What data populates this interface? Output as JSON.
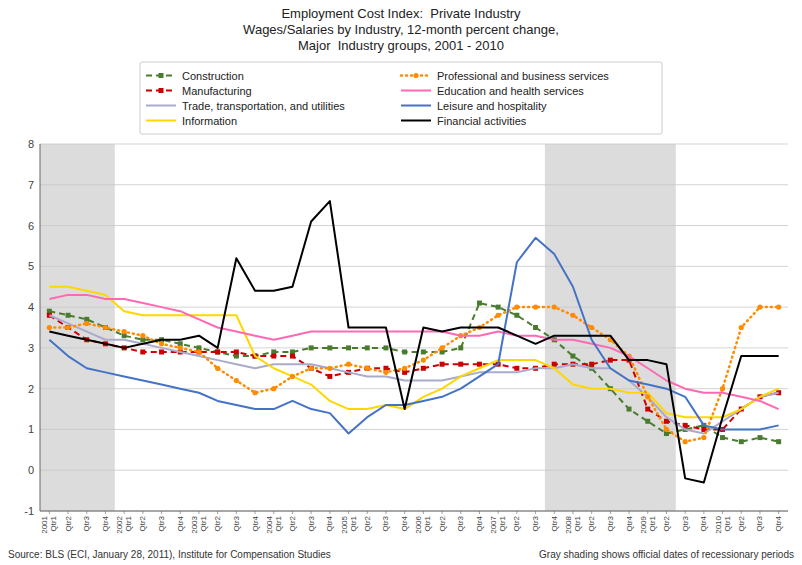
{
  "chart_data": {
    "type": "line",
    "title": "Employment Cost Index:  Private Industry\nWages/Salaries by Industry, 12-month percent change,\nMajor  Industry groups, 2001 - 2010",
    "annotations": [
      "Source: BLS (ECI, January 28, 2011), Institute for Compensation Studies",
      "Gray shading shows official dates of recessionary periods"
    ],
    "recession_bands": [
      [
        0,
        3
      ],
      [
        27,
        33
      ]
    ],
    "categories": [
      "2001\nQtr1",
      "Qtr2",
      "Qtr3",
      "Qtr4",
      "2002\nQtr1",
      "Qtr2",
      "Qtr3",
      "Qtr4",
      "2003\nQtr1",
      "Qtr2",
      "Qtr3",
      "Qtr4",
      "2004\nQtr1",
      "Qtr2",
      "Qtr3",
      "Qtr4",
      "2005\nQtr1",
      "Qtr2",
      "Qtr3",
      "Qtr4",
      "2006\nQtr1",
      "Qtr2",
      "Qtr3",
      "Qtr4",
      "2007\nQtr1",
      "Qtr2",
      "Qtr3",
      "Qtr4",
      "2008\nQtr1",
      "Qtr2",
      "Qtr3",
      "Qtr4",
      "2009\nQtr1",
      "Qtr2",
      "Qtr3",
      "Qtr4",
      "2010\nQtr1",
      "Qtr2",
      "Qtr3",
      "Qtr4"
    ],
    "series": [
      {
        "name": "Construction",
        "color": "#4A7C2F",
        "line_style": "dashed",
        "marker": "square",
        "values": [
          3.9,
          3.8,
          3.7,
          3.5,
          3.3,
          3.2,
          3.2,
          3.1,
          3.0,
          2.9,
          2.8,
          2.8,
          2.9,
          2.9,
          3.0,
          3.0,
          3.0,
          3.0,
          3.0,
          2.9,
          2.9,
          2.9,
          3.0,
          4.1,
          4.0,
          3.8,
          3.5,
          3.2,
          2.8,
          2.5,
          2.0,
          1.5,
          1.2,
          0.9,
          1.0,
          1.1,
          0.8,
          0.7,
          0.8,
          0.7
        ]
      },
      {
        "name": "Manufacturing",
        "color": "#CC0000",
        "line_style": "dashed",
        "marker": "square",
        "values": [
          3.8,
          3.5,
          3.2,
          3.1,
          3.0,
          2.9,
          2.9,
          2.9,
          2.9,
          2.9,
          2.9,
          2.8,
          2.8,
          2.8,
          2.5,
          2.3,
          2.4,
          2.5,
          2.5,
          2.4,
          2.5,
          2.6,
          2.6,
          2.6,
          2.6,
          2.5,
          2.5,
          2.6,
          2.6,
          2.6,
          2.7,
          2.7,
          1.5,
          1.2,
          1.1,
          1.0,
          1.0,
          1.5,
          1.8,
          1.9
        ]
      },
      {
        "name": "Trade, transportation, and utilities",
        "color": "#AAAACC",
        "line_style": "solid",
        "values": [
          3.8,
          3.6,
          3.4,
          3.2,
          3.2,
          3.1,
          3.0,
          2.9,
          2.8,
          2.7,
          2.6,
          2.5,
          2.6,
          2.6,
          2.6,
          2.5,
          2.4,
          2.3,
          2.3,
          2.2,
          2.2,
          2.2,
          2.3,
          2.4,
          2.4,
          2.4,
          2.5,
          2.5,
          2.6,
          2.5,
          2.5,
          2.2,
          1.8,
          1.3,
          1.0,
          0.9,
          1.2,
          1.5,
          1.8,
          1.9
        ]
      },
      {
        "name": "Information",
        "color": "#FFD700",
        "line_style": "solid",
        "values": [
          4.5,
          4.5,
          4.4,
          4.3,
          3.9,
          3.8,
          3.8,
          3.8,
          3.8,
          3.8,
          3.8,
          2.8,
          2.5,
          2.3,
          2.1,
          1.7,
          1.5,
          1.5,
          1.6,
          1.5,
          1.8,
          2.0,
          2.3,
          2.5,
          2.7,
          2.7,
          2.7,
          2.5,
          2.1,
          2.0,
          2.0,
          1.9,
          1.9,
          1.4,
          1.3,
          1.3,
          1.3,
          1.5,
          1.8,
          2.0
        ]
      },
      {
        "name": "Professional and business services",
        "color": "#FF8C00",
        "line_style": "dotted",
        "marker": "circle",
        "values": [
          3.5,
          3.5,
          3.6,
          3.5,
          3.4,
          3.3,
          3.1,
          3.0,
          2.9,
          2.5,
          2.2,
          1.9,
          2.0,
          2.3,
          2.5,
          2.5,
          2.6,
          2.5,
          2.4,
          2.5,
          2.7,
          3.0,
          3.3,
          3.5,
          3.8,
          4.0,
          4.0,
          4.0,
          3.8,
          3.5,
          3.2,
          2.8,
          1.8,
          1.0,
          0.7,
          0.8,
          2.0,
          3.5,
          4.0,
          4.0
        ]
      },
      {
        "name": "Education and health services",
        "color": "#FF69B4",
        "line_style": "solid",
        "values": [
          4.2,
          4.3,
          4.3,
          4.2,
          4.2,
          4.1,
          4.0,
          3.9,
          3.7,
          3.5,
          3.4,
          3.3,
          3.2,
          3.3,
          3.4,
          3.4,
          3.4,
          3.4,
          3.4,
          3.4,
          3.4,
          3.4,
          3.3,
          3.3,
          3.4,
          3.3,
          3.3,
          3.2,
          3.2,
          3.1,
          3.0,
          2.8,
          2.5,
          2.2,
          2.0,
          1.9,
          1.9,
          1.8,
          1.7,
          1.5
        ]
      },
      {
        "name": "Leisure and hospitality",
        "color": "#4472C4",
        "line_style": "solid",
        "values": [
          3.2,
          2.8,
          2.5,
          2.4,
          2.3,
          2.2,
          2.1,
          2.0,
          1.9,
          1.7,
          1.6,
          1.5,
          1.5,
          1.7,
          1.5,
          1.4,
          0.9,
          1.3,
          1.6,
          1.6,
          1.7,
          1.8,
          2.0,
          2.3,
          2.6,
          5.1,
          5.7,
          5.3,
          4.5,
          3.2,
          2.5,
          2.2,
          2.1,
          2.0,
          1.8,
          1.1,
          1.0,
          1.0,
          1.0,
          1.1
        ]
      },
      {
        "name": "Financial activities",
        "color": "#000000",
        "line_style": "solid",
        "values": [
          3.4,
          3.3,
          3.2,
          3.1,
          3.0,
          3.1,
          3.2,
          3.2,
          3.3,
          3.0,
          5.2,
          4.4,
          4.4,
          4.5,
          6.1,
          6.6,
          3.5,
          3.5,
          3.5,
          1.5,
          3.5,
          3.4,
          3.5,
          3.5,
          3.5,
          3.3,
          3.1,
          3.3,
          3.3,
          3.3,
          3.3,
          2.7,
          2.7,
          2.6,
          -0.2,
          -0.3,
          1.3,
          2.8,
          2.8,
          2.8
        ]
      }
    ],
    "ylim": [
      -1,
      8
    ],
    "yticks": [
      -1,
      0,
      1,
      2,
      3,
      4,
      5,
      6,
      7,
      8
    ],
    "grid": true,
    "legend": "top"
  }
}
